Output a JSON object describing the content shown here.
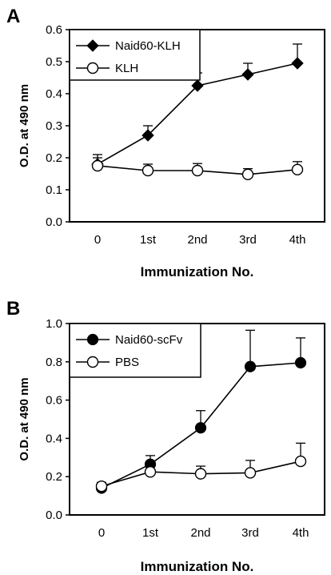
{
  "chart_data": [
    {
      "panel": "A",
      "type": "line",
      "categories": [
        "0",
        "1st",
        "2nd",
        "3rd",
        "4th"
      ],
      "xlabel": "Immunization No.",
      "ylabel": "O.D. at 490 nm",
      "ylim": [
        0,
        0.6
      ],
      "yticks": [
        "0.0",
        "0.1",
        "0.2",
        "0.3",
        "0.4",
        "0.5",
        "0.6"
      ],
      "legend": "top-left",
      "series": [
        {
          "name": "Naid60-KLH",
          "marker": "filled-diamond",
          "values": [
            0.18,
            0.27,
            0.425,
            0.46,
            0.495
          ],
          "errors": [
            0.03,
            0.03,
            0.04,
            0.035,
            0.06
          ]
        },
        {
          "name": "KLH",
          "marker": "open-circle",
          "values": [
            0.175,
            0.16,
            0.16,
            0.148,
            0.163
          ],
          "errors": [
            0.025,
            0.02,
            0.022,
            0.018,
            0.025
          ]
        }
      ]
    },
    {
      "panel": "B",
      "type": "line",
      "categories": [
        "0",
        "1st",
        "2nd",
        "3rd",
        "4th"
      ],
      "xlabel": "Immunization No.",
      "ylabel": "O.D. at 490 nm",
      "ylim": [
        0,
        1.0
      ],
      "yticks": [
        "0.0",
        "0.2",
        "0.4",
        "0.6",
        "0.8",
        "1.0"
      ],
      "legend": "top-left",
      "series": [
        {
          "name": "Naid60-scFv",
          "marker": "filled-circle",
          "values": [
            0.14,
            0.265,
            0.455,
            0.775,
            0.795
          ],
          "errors": [
            0.02,
            0.045,
            0.09,
            0.19,
            0.13
          ]
        },
        {
          "name": "PBS",
          "marker": "open-circle",
          "values": [
            0.15,
            0.225,
            0.215,
            0.22,
            0.28
          ],
          "errors": [
            0.02,
            0.03,
            0.04,
            0.065,
            0.095
          ]
        }
      ]
    }
  ]
}
